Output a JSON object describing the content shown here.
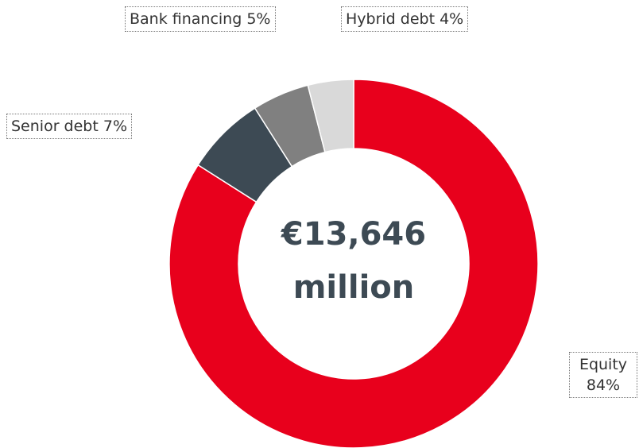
{
  "chart_data": {
    "type": "donut",
    "categories": [
      "Equity",
      "Senior debt",
      "Bank financing",
      "Hybrid debt"
    ],
    "values": [
      84,
      7,
      5,
      4
    ],
    "value_labels": [
      "84%",
      "7%",
      "5%",
      "4%"
    ],
    "colors": [
      "#e8001c",
      "#3d4a54",
      "#808080",
      "#d9d9d9"
    ],
    "annotations": [
      "€13,646",
      "million"
    ]
  }
}
